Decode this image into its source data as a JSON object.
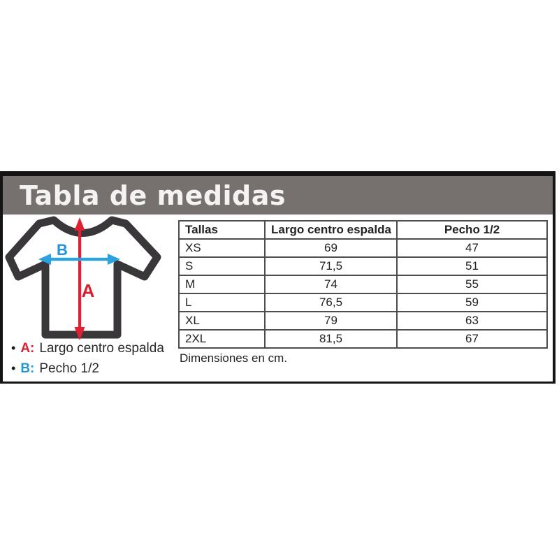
{
  "title": "Tabla de medidas",
  "diagram": {
    "label_a": "A",
    "label_b": "B",
    "arrow_a_color": "#e02133",
    "arrow_b_color": "#2aa2df",
    "shirt_outline_color": "#39373a"
  },
  "legend": {
    "bullet": "•",
    "items": [
      {
        "key": "A:",
        "text": "Largo centro espalda"
      },
      {
        "key": "B:",
        "text": "Pecho 1/2"
      }
    ]
  },
  "table": {
    "headers": [
      "Tallas",
      "Largo centro espalda",
      "Pecho 1/2"
    ],
    "rows": [
      [
        "XS",
        "69",
        "47"
      ],
      [
        "S",
        "71,5",
        "51"
      ],
      [
        "M",
        "74",
        "55"
      ],
      [
        "L",
        "76,5",
        "59"
      ],
      [
        "XL",
        "79",
        "63"
      ],
      [
        "2XL",
        "81,5",
        "67"
      ]
    ],
    "caption": "Dimensiones en cm."
  },
  "colors": {
    "header_bg": "#76716f",
    "frame_border": "#141414",
    "table_border": "#4d4d4d"
  }
}
